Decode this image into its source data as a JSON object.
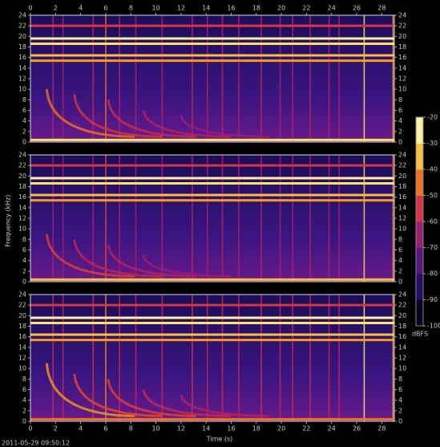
{
  "chart_data": {
    "type": "spectrogram",
    "xlabel": "Time (s)",
    "ylabel": "Frequency (kHz)",
    "timestamp": "2011-05-29 09:50:12",
    "xlim": [
      0,
      29
    ],
    "xticks": [
      0,
      2,
      4,
      6,
      8,
      10,
      12,
      14,
      16,
      18,
      20,
      22,
      24,
      26,
      28
    ],
    "ylim": [
      0,
      24
    ],
    "yticks": [
      0,
      2,
      4,
      6,
      8,
      10,
      12,
      14,
      16,
      18,
      20,
      22,
      24
    ],
    "colorbar": {
      "label": "dBFS",
      "lim": [
        -100,
        -20
      ],
      "ticks": [
        -20,
        -30,
        -40,
        -50,
        -60,
        -70,
        -80,
        -90,
        -100
      ],
      "colormap": [
        "#000000",
        "#0d0a4a",
        "#3a0f7a",
        "#7a1a8c",
        "#c0245a",
        "#e8482a",
        "#f59a1a",
        "#fde26a",
        "#fffbe0"
      ]
    },
    "panels": [
      {
        "tones": [
          {
            "freq": 22,
            "level": -55
          },
          {
            "freq": 19.6,
            "level": -25
          },
          {
            "freq": 18.6,
            "level": -30
          },
          {
            "freq": 16.4,
            "level": -35
          },
          {
            "freq": 15.4,
            "level": -40
          },
          {
            "freq": 0.4,
            "level": -30
          }
        ],
        "decays": [
          {
            "time": 1.3,
            "freq": 10,
            "level": -45
          },
          {
            "time": 3.5,
            "freq": 9,
            "level": -55
          },
          {
            "time": 6.2,
            "freq": 8,
            "level": -58
          },
          {
            "time": 9,
            "freq": 6,
            "level": -62
          },
          {
            "time": 12,
            "freq": 5,
            "level": -66
          }
        ],
        "transients": [
          {
            "time": 1.8,
            "level": -62
          },
          {
            "time": 2.6,
            "level": -64
          },
          {
            "time": 5.0,
            "level": -60
          },
          {
            "time": 6.0,
            "level": -45
          },
          {
            "time": 7.1,
            "level": -62
          },
          {
            "time": 8.4,
            "level": -63
          },
          {
            "time": 10.5,
            "level": -62
          },
          {
            "time": 12.9,
            "level": -60
          },
          {
            "time": 14.1,
            "level": -63
          },
          {
            "time": 15.3,
            "level": -61
          },
          {
            "time": 16.6,
            "level": -62
          },
          {
            "time": 18.4,
            "level": -60
          },
          {
            "time": 19.9,
            "level": -63
          },
          {
            "time": 20.9,
            "level": -62
          },
          {
            "time": 22.3,
            "level": -61
          },
          {
            "time": 23.8,
            "level": -63
          },
          {
            "time": 24.6,
            "level": -62
          },
          {
            "time": 26.6,
            "level": -30
          },
          {
            "time": 28.9,
            "level": -40
          }
        ]
      },
      {
        "tones": [
          {
            "freq": 22,
            "level": -55
          },
          {
            "freq": 19.6,
            "level": -25
          },
          {
            "freq": 18.6,
            "level": -30
          },
          {
            "freq": 16.4,
            "level": -35
          },
          {
            "freq": 15.4,
            "level": -40
          },
          {
            "freq": 0.4,
            "level": -35
          }
        ],
        "decays": [
          {
            "time": 1.3,
            "freq": 9,
            "level": -52
          },
          {
            "time": 3.5,
            "freq": 8,
            "level": -60
          },
          {
            "time": 6.2,
            "freq": 7,
            "level": -62
          },
          {
            "time": 9,
            "freq": 5,
            "level": -66
          }
        ],
        "transients": [
          {
            "time": 1.8,
            "level": -64
          },
          {
            "time": 2.6,
            "level": -65
          },
          {
            "time": 5.0,
            "level": -62
          },
          {
            "time": 6.0,
            "level": -50
          },
          {
            "time": 7.1,
            "level": -63
          },
          {
            "time": 8.4,
            "level": -64
          },
          {
            "time": 10.5,
            "level": -63
          },
          {
            "time": 12.9,
            "level": -61
          },
          {
            "time": 14.1,
            "level": -64
          },
          {
            "time": 15.3,
            "level": -62
          },
          {
            "time": 16.6,
            "level": -63
          },
          {
            "time": 18.4,
            "level": -61
          },
          {
            "time": 19.9,
            "level": -64
          },
          {
            "time": 20.9,
            "level": -63
          },
          {
            "time": 22.3,
            "level": -62
          },
          {
            "time": 23.8,
            "level": -64
          },
          {
            "time": 24.6,
            "level": -63
          },
          {
            "time": 26.6,
            "level": -32
          },
          {
            "time": 28.9,
            "level": -42
          }
        ]
      },
      {
        "tones": [
          {
            "freq": 22,
            "level": -55
          },
          {
            "freq": 19.6,
            "level": -25
          },
          {
            "freq": 18.6,
            "level": -30
          },
          {
            "freq": 16.4,
            "level": -35
          },
          {
            "freq": 15.4,
            "level": -40
          },
          {
            "freq": 0.4,
            "level": -45
          }
        ],
        "decays": [
          {
            "time": 1.3,
            "freq": 11,
            "level": -40
          },
          {
            "time": 3.5,
            "freq": 9,
            "level": -50
          },
          {
            "time": 6.2,
            "freq": 8,
            "level": -52
          },
          {
            "time": 9,
            "freq": 6,
            "level": -58
          },
          {
            "time": 12,
            "freq": 5,
            "level": -62
          }
        ],
        "transients": [
          {
            "time": 1.8,
            "level": -58
          },
          {
            "time": 2.6,
            "level": -60
          },
          {
            "time": 5.0,
            "level": -56
          },
          {
            "time": 6.0,
            "level": -42
          },
          {
            "time": 7.1,
            "level": -58
          },
          {
            "time": 8.4,
            "level": -60
          },
          {
            "time": 10.5,
            "level": -59
          },
          {
            "time": 12.9,
            "level": -56
          },
          {
            "time": 14.1,
            "level": -60
          },
          {
            "time": 15.3,
            "level": -58
          },
          {
            "time": 16.6,
            "level": -59
          },
          {
            "time": 18.4,
            "level": -57
          },
          {
            "time": 19.9,
            "level": -60
          },
          {
            "time": 20.9,
            "level": -59
          },
          {
            "time": 22.3,
            "level": -58
          },
          {
            "time": 23.8,
            "level": -60
          },
          {
            "time": 24.6,
            "level": -59
          },
          {
            "time": 26.6,
            "level": -28
          },
          {
            "time": 28.9,
            "level": -38
          }
        ]
      }
    ]
  }
}
